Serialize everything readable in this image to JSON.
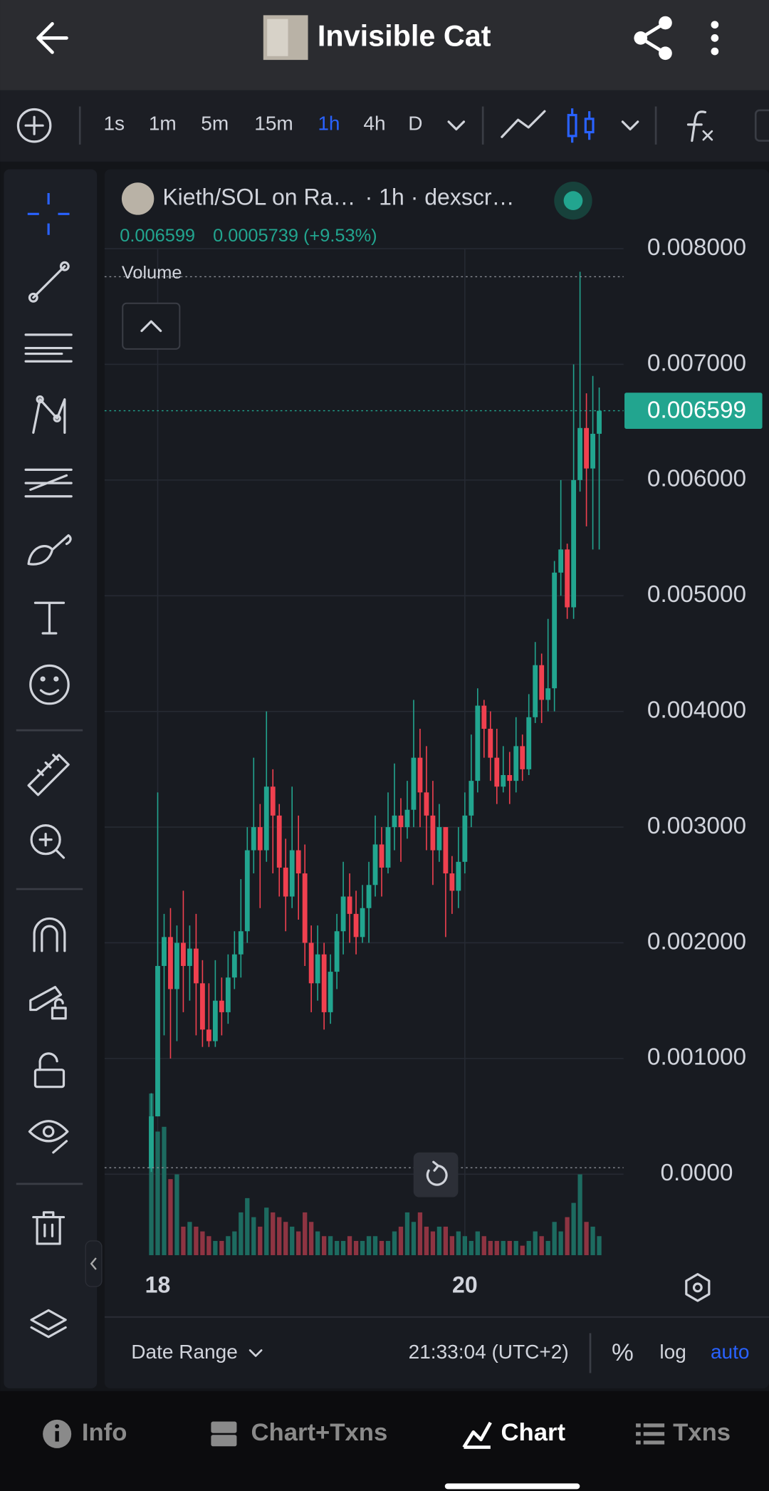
{
  "header": {
    "title": "Invisible Cat"
  },
  "toolbar": {
    "intervals": [
      {
        "label": "1s"
      },
      {
        "label": "1m"
      },
      {
        "label": "5m"
      },
      {
        "label": "15m"
      },
      {
        "label": "1h",
        "active": true
      },
      {
        "label": "4h"
      },
      {
        "label": "D"
      }
    ]
  },
  "chart_data": {
    "type": "candlestick",
    "legend": {
      "symbol": "Kieth/SOL on Ra…",
      "details": "· 1h · dexscr…",
      "change": "0.0005739 (+9.53%)"
    },
    "pane_label": "Volume",
    "up_color": "#22a58f",
    "down_color": "#f0404f",
    "volume_up_color": "#1d6b60",
    "volume_down_color": "#8e3442",
    "ylim": [
      -0.0007,
      0.00867
    ],
    "yticks": [
      {
        "value": 0,
        "label": "0.0000"
      },
      {
        "value": 0.001,
        "label": "0.001000"
      },
      {
        "value": 0.002,
        "label": "0.002000"
      },
      {
        "value": 0.003,
        "label": "0.003000"
      },
      {
        "value": 0.004,
        "label": "0.004000"
      },
      {
        "value": 0.005,
        "label": "0.005000"
      },
      {
        "value": 0.006,
        "label": "0.006000"
      },
      {
        "value": 0.007,
        "label": "0.007000"
      },
      {
        "value": 0.008,
        "label": "0.008000"
      }
    ],
    "xlim": [
      -7.3,
      73.8
    ],
    "xticks": [
      {
        "value": 1,
        "label": "18"
      },
      {
        "value": 49,
        "label": "20"
      }
    ],
    "vlim": [
      0,
      200
    ],
    "grid": true,
    "open": [
      5e-05,
      0.0005,
      0.0018,
      0.00205,
      0.0016,
      0.002,
      0.0018,
      0.00195,
      0.00165,
      0.00125,
      0.00115,
      0.0015,
      0.0014,
      0.0017,
      0.0019,
      0.0021,
      0.0028,
      0.003,
      0.0028,
      0.00335,
      0.0031,
      0.00265,
      0.0024,
      0.0028,
      0.0026,
      0.002,
      0.00165,
      0.0019,
      0.0014,
      0.00175,
      0.0021,
      0.0024,
      0.00225,
      0.00205,
      0.0023,
      0.0025,
      0.00285,
      0.00265,
      0.003,
      0.0031,
      0.003,
      0.00315,
      0.0036,
      0.0033,
      0.0031,
      0.0028,
      0.003,
      0.0026,
      0.00245,
      0.0027,
      0.0031,
      0.0034,
      0.00405,
      0.00385,
      0.0036,
      0.00335,
      0.00345,
      0.0034,
      0.0037,
      0.0035,
      0.00395,
      0.0044,
      0.0041,
      0.0042,
      0.0052,
      0.0054,
      0.0049,
      0.006,
      0.00645,
      0.0061,
      0.0064
    ],
    "high": [
      0.0007,
      0.0033,
      0.00225,
      0.0023,
      0.00215,
      0.00245,
      0.00215,
      0.00225,
      0.00185,
      0.00165,
      0.00185,
      0.0017,
      0.0019,
      0.0021,
      0.00255,
      0.003,
      0.0036,
      0.0032,
      0.004,
      0.0035,
      0.0032,
      0.0029,
      0.00335,
      0.0031,
      0.00285,
      0.00215,
      0.00215,
      0.002,
      0.0019,
      0.00225,
      0.0027,
      0.0026,
      0.00245,
      0.0025,
      0.0027,
      0.0031,
      0.003,
      0.0033,
      0.00355,
      0.00325,
      0.0034,
      0.0041,
      0.00385,
      0.0037,
      0.0034,
      0.0032,
      0.003,
      0.00275,
      0.003,
      0.0033,
      0.0038,
      0.0042,
      0.0041,
      0.004,
      0.00385,
      0.0037,
      0.00365,
      0.00395,
      0.0038,
      0.00415,
      0.0046,
      0.0045,
      0.0048,
      0.0053,
      0.006,
      0.00545,
      0.007,
      0.0078,
      0.00675,
      0.0069,
      0.0068
    ],
    "low": [
      2e-05,
      0.0005,
      0.0012,
      0.001,
      0.00115,
      0.0014,
      0.0015,
      0.0012,
      0.0011,
      0.0011,
      0.0011,
      0.0012,
      0.0013,
      0.0016,
      0.0017,
      0.002,
      0.0026,
      0.0023,
      0.0027,
      0.0026,
      0.0024,
      0.0021,
      0.0023,
      0.0022,
      0.0018,
      0.0014,
      0.0015,
      0.00125,
      0.0013,
      0.0016,
      0.0019,
      0.002,
      0.0019,
      0.002,
      0.002,
      0.0024,
      0.0024,
      0.0026,
      0.0028,
      0.0027,
      0.0029,
      0.003,
      0.003,
      0.0028,
      0.0025,
      0.0027,
      0.00205,
      0.00225,
      0.0023,
      0.0026,
      0.003,
      0.0033,
      0.0036,
      0.0034,
      0.0032,
      0.0033,
      0.0032,
      0.0033,
      0.0034,
      0.00345,
      0.0039,
      0.0039,
      0.004,
      0.004,
      0.005,
      0.0048,
      0.0048,
      0.0059,
      0.0056,
      0.0054,
      0.0054
    ],
    "close": [
      0.0005,
      0.0018,
      0.00205,
      0.0016,
      0.002,
      0.0018,
      0.00195,
      0.00165,
      0.00125,
      0.00115,
      0.0015,
      0.0014,
      0.0017,
      0.0019,
      0.0021,
      0.0028,
      0.003,
      0.0028,
      0.00335,
      0.0031,
      0.00265,
      0.0024,
      0.0028,
      0.0026,
      0.002,
      0.00165,
      0.0019,
      0.0014,
      0.00175,
      0.0021,
      0.0024,
      0.00225,
      0.00205,
      0.0023,
      0.0025,
      0.00285,
      0.00265,
      0.003,
      0.0031,
      0.003,
      0.00315,
      0.0036,
      0.0033,
      0.0031,
      0.0028,
      0.003,
      0.0026,
      0.00245,
      0.0027,
      0.0031,
      0.0034,
      0.00405,
      0.00385,
      0.0036,
      0.00335,
      0.00345,
      0.0034,
      0.0037,
      0.0035,
      0.00395,
      0.0044,
      0.0041,
      0.0042,
      0.0052,
      0.0054,
      0.0049,
      0.006,
      0.00645,
      0.0061,
      0.0064,
      0.006599
    ],
    "volume": [
      170,
      130,
      135,
      80,
      85,
      30,
      35,
      30,
      25,
      20,
      15,
      15,
      20,
      25,
      45,
      60,
      40,
      30,
      50,
      45,
      40,
      35,
      30,
      25,
      45,
      35,
      25,
      20,
      20,
      15,
      15,
      20,
      15,
      15,
      20,
      20,
      15,
      15,
      25,
      30,
      45,
      35,
      45,
      30,
      25,
      30,
      30,
      20,
      25,
      20,
      15,
      25,
      20,
      15,
      15,
      15,
      15,
      15,
      10,
      15,
      25,
      20,
      15,
      35,
      25,
      40,
      55,
      85,
      35,
      30,
      20
    ]
  },
  "footer": {
    "date_range": "Date Range",
    "time": "21:33:04 (UTC+2)",
    "percent": "%",
    "log": "log",
    "auto": "auto"
  },
  "nav": [
    {
      "label": "Info"
    },
    {
      "label": "Chart+Txns"
    },
    {
      "label": "Chart",
      "active": true
    },
    {
      "label": "Txns"
    }
  ]
}
